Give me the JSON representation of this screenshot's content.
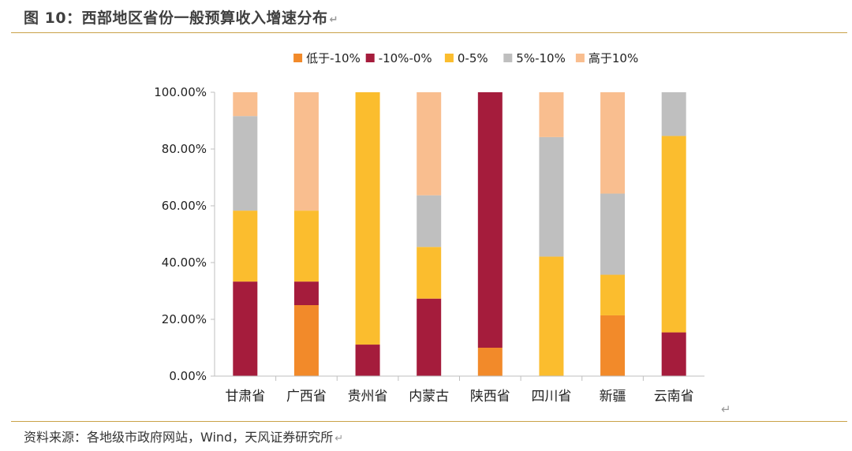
{
  "figure": {
    "title": "图 10：西部地区省份一般预算收入增速分布",
    "source": "资料来源：各地级市政府网站，Wind，天风证券研究所",
    "return_mark": "↵"
  },
  "chart_data": {
    "type": "bar",
    "stacked": true,
    "title": "",
    "xlabel": "",
    "ylabel": "",
    "ylim": [
      0,
      100
    ],
    "yticks": [
      "0.00%",
      "20.00%",
      "40.00%",
      "60.00%",
      "80.00%",
      "100.00%"
    ],
    "legend_position": "top",
    "categories": [
      "甘肃省",
      "广西省",
      "贵州省",
      "内蒙古",
      "陕西省",
      "四川省",
      "新疆",
      "云南省"
    ],
    "series": [
      {
        "name": "低于-10%",
        "color": "#f28a2a",
        "values": [
          0,
          25.0,
          0,
          0,
          10.0,
          0,
          21.4,
          0
        ]
      },
      {
        "name": "-10%-0%",
        "color": "#a51c3c",
        "values": [
          33.3,
          8.3,
          11.1,
          27.3,
          90.0,
          0,
          0,
          15.4
        ]
      },
      {
        "name": "0-5%",
        "color": "#fbbd2e",
        "values": [
          25.0,
          25.0,
          88.9,
          18.2,
          0,
          42.1,
          14.3,
          69.2
        ]
      },
      {
        "name": "5%-10%",
        "color": "#bfbfbf",
        "values": [
          33.3,
          0,
          0,
          18.2,
          0,
          42.1,
          28.6,
          15.4
        ]
      },
      {
        "name": "高于10%",
        "color": "#f9be8f",
        "values": [
          8.4,
          41.7,
          0,
          36.3,
          0,
          15.8,
          35.7,
          0
        ]
      }
    ]
  }
}
